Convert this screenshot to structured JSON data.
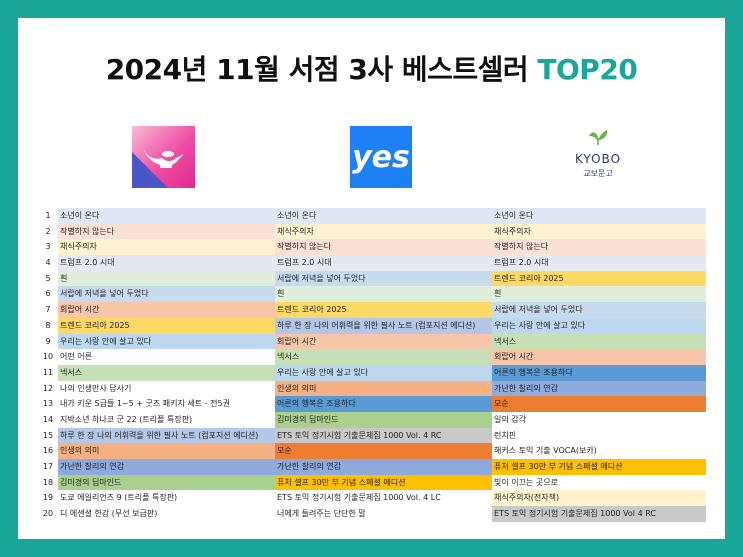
{
  "header": {
    "title_main": "2024년 11월 서점 3사 베스트셀러 ",
    "title_accent": "TOP20"
  },
  "logos": {
    "yes_text": "yes",
    "kyobo_en": "KYOBO",
    "kyobo_ko": "교보문고"
  },
  "colors": {
    "background": "#1aa79a",
    "accent": "#1aa79a"
  },
  "rows": [
    {
      "rank": "1",
      "cols": [
        {
          "text": "소년이 온다",
          "color": "#dde8f4"
        },
        {
          "text": "소년이 온다",
          "color": "#dde8f4"
        },
        {
          "text": "소년이 온다",
          "color": "#dde8f4"
        }
      ]
    },
    {
      "rank": "2",
      "cols": [
        {
          "text": "작별하지 않는다",
          "color": "#fbe0d6"
        },
        {
          "text": "채식주의자",
          "color": "#fdf2d0"
        },
        {
          "text": "채식주의자",
          "color": "#fdf2d0"
        }
      ]
    },
    {
      "rank": "3",
      "cols": [
        {
          "text": "채식주의자",
          "color": "#fdf2d0"
        },
        {
          "text": "작별하지 않는다",
          "color": "#fbe0d6"
        },
        {
          "text": "작별하지 않는다",
          "color": "#fbe0d6"
        }
      ]
    },
    {
      "rank": "4",
      "cols": [
        {
          "text": "트럼프 2.0 시대",
          "color": "#e3e8f2"
        },
        {
          "text": "트럼프 2.0 시대",
          "color": "#e3e8f2"
        },
        {
          "text": "트럼프 2.0 시대",
          "color": "#e3e8f2"
        }
      ]
    },
    {
      "rank": "5",
      "cols": [
        {
          "text": "흰",
          "color": "#e0efd9"
        },
        {
          "text": "서랍에 저녁을 넣어 두었다",
          "color": "#c7dbef"
        },
        {
          "text": "트렌드 코리아 2025",
          "color": "#ffd966"
        }
      ]
    },
    {
      "rank": "6",
      "cols": [
        {
          "text": "서랍에 저녁을 넣어 두었다",
          "color": "#c7dbef"
        },
        {
          "text": "흰",
          "color": "#e0efd9"
        },
        {
          "text": "흰",
          "color": "#e0efd9"
        }
      ]
    },
    {
      "rank": "7",
      "cols": [
        {
          "text": "회랍어 시간",
          "color": "#f7c6a8"
        },
        {
          "text": "트렌드 코리아 2025",
          "color": "#ffd966"
        },
        {
          "text": "서랍에 저녁을 넣어 두었다",
          "color": "#c7dbef"
        }
      ]
    },
    {
      "rank": "8",
      "cols": [
        {
          "text": "트렌드 코리아 2025",
          "color": "#ffd966"
        },
        {
          "text": "하루 한 장 나의 어휘력을 위한 필사 노트 (컴포지션 에디션)",
          "color": "#b4c7e7"
        },
        {
          "text": "우리는 사랑 안에 살고 있다",
          "color": "#bdd7ee"
        }
      ]
    },
    {
      "rank": "9",
      "cols": [
        {
          "text": "우리는 사랑 안에 살고 있다",
          "color": "#bdd7ee"
        },
        {
          "text": "회랍어 시간",
          "color": "#f7c6a8"
        },
        {
          "text": "넥서스",
          "color": "#c5e0b4"
        }
      ]
    },
    {
      "rank": "10",
      "cols": [
        {
          "text": "어떤 어른",
          "color": "#ffffff"
        },
        {
          "text": "넥서스",
          "color": "#c5e0b4"
        },
        {
          "text": "회랍어 시간",
          "color": "#f7c6a8"
        }
      ]
    },
    {
      "rank": "11",
      "cols": [
        {
          "text": "넥서스",
          "color": "#c5e0b4"
        },
        {
          "text": "우리는 사랑 안에 살고 있다",
          "color": "#bdd7ee"
        },
        {
          "text": "어른의 행복은 조용하다",
          "color": "#5b9bd5"
        }
      ]
    },
    {
      "rank": "12",
      "cols": [
        {
          "text": "나의 인생만사 답사기",
          "color": "#ffffff"
        },
        {
          "text": "인생의 의미",
          "color": "#f4b183"
        },
        {
          "text": "가난한 찰리의 연감",
          "color": "#8faadc"
        }
      ]
    },
    {
      "rank": "13",
      "cols": [
        {
          "text": "내가 키운 S급들 1~5 + 굿즈 패키지 세트 - 전5권",
          "color": "#ffffff"
        },
        {
          "text": "어른의 행복은 조용하다",
          "color": "#5b9bd5"
        },
        {
          "text": "모순",
          "color": "#ed7d31"
        }
      ]
    },
    {
      "rank": "14",
      "cols": [
        {
          "text": "지박소년 하나코 군 22 (트리플 특장판)",
          "color": "#ffffff"
        },
        {
          "text": "김미경의 딥마인드",
          "color": "#a9d18e"
        },
        {
          "text": "일의 감각",
          "color": "#ffffff"
        }
      ]
    },
    {
      "rank": "15",
      "cols": [
        {
          "text": "하루 한 장 나의 어휘력을 위한 필사 노트 (컴포지션 에디션)",
          "color": "#b4c7e7"
        },
        {
          "text": "ETS 토익 정기시험 기출문제집 1000 Vol. 4 RC",
          "color": "#c9c9c9"
        },
        {
          "text": "런치핀",
          "color": "#ffffff"
        }
      ]
    },
    {
      "rank": "16",
      "cols": [
        {
          "text": "인생의 의미",
          "color": "#f4b183"
        },
        {
          "text": "모순",
          "color": "#ed7d31"
        },
        {
          "text": "해커스 토익 기출 VOCA(보카)",
          "color": "#ffffff"
        }
      ]
    },
    {
      "rank": "17",
      "cols": [
        {
          "text": "가난한 찰리의 연감",
          "color": "#8faadc"
        },
        {
          "text": "가난한 찰리의 연감",
          "color": "#8faadc"
        },
        {
          "text": "퓨처 셀프 30만 부 기념 스페셜 에디션",
          "color": "#ffc000"
        }
      ]
    },
    {
      "rank": "18",
      "cols": [
        {
          "text": "김미경의 딥마인드",
          "color": "#a9d18e"
        },
        {
          "text": "퓨처 셀프 30만 부 기념 스페셜 에디션",
          "color": "#ffc000"
        },
        {
          "text": "빛이 이끄는 곳으로",
          "color": "#ffffff"
        }
      ]
    },
    {
      "rank": "19",
      "cols": [
        {
          "text": "도쿄 에일리언즈 9 (트리플 특장판)",
          "color": "#ffffff"
        },
        {
          "text": "ETS 토익 정기시험 기출문제집 1000 Vol. 4 LC",
          "color": "#ffffff"
        },
        {
          "text": "채식주의자(전자책)",
          "color": "#fff2cc"
        }
      ]
    },
    {
      "rank": "20",
      "cols": [
        {
          "text": "디 에센셜 한강 (무선 보급판)",
          "color": "#ffffff"
        },
        {
          "text": "너에게 들려주는 단단한 말",
          "color": "#ffffff"
        },
        {
          "text": "ETS 토익 정기시험 기출문제집 1000 Vol 4 RC",
          "color": "#c9c9c9"
        }
      ]
    }
  ]
}
